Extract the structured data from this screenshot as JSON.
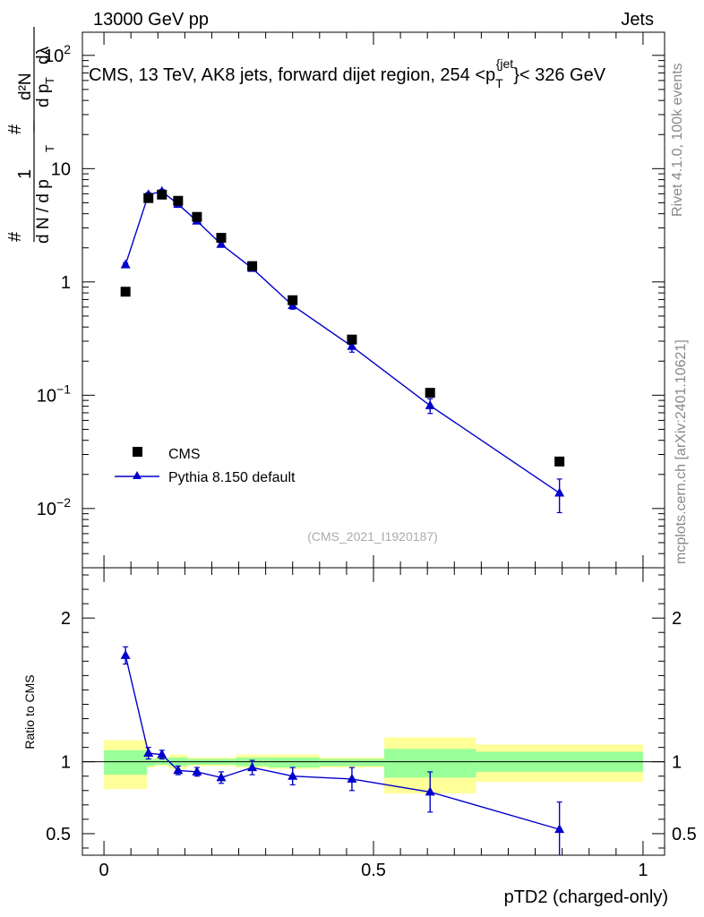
{
  "header": {
    "left": "13000 GeV pp",
    "right": "Jets"
  },
  "side_labels": {
    "rivet": "Rivet 4.1.0,  100k events",
    "source": "mcplots.cern.ch [arXiv:2401.10621]"
  },
  "chart_data": [
    {
      "type": "scatter",
      "panel": "main",
      "title": "CMS, 13 TeV, AK8 jets, forward dijet region, 254 <p_T^{jet}< 326 GeV",
      "title_parts": {
        "prefix": "CMS, 13 TeV, AK8 jets, forward dijet region, 254 <p",
        "sub": "T",
        "sup": "{jet",
        "suffix": "}< 326 GeV"
      },
      "ylabel": "1/(dN/dp_T) d²N/(dp_T dλ)",
      "ylabel_parts": {
        "lead": "1",
        "den": "d N / d p",
        "num_sym": "d²N",
        "den2": "d p",
        "sub_T": "T",
        "lambda": "dλ",
        "hash": "#"
      },
      "yscale": "log",
      "ylim": [
        0.003,
        160
      ],
      "y_ticks": [
        {
          "value": 0.01,
          "base": "10",
          "exp": "−2"
        },
        {
          "value": 0.1,
          "base": "10",
          "exp": "−1"
        },
        {
          "value": 1,
          "label": "1"
        },
        {
          "value": 10,
          "label": "10"
        },
        {
          "value": 100,
          "base": "10",
          "exp": "2"
        }
      ],
      "xlim": [
        -0.04,
        1.04
      ],
      "watermark": "(CMS_2021_I1920187)",
      "legend_position": "bottom-left",
      "series": [
        {
          "name": "CMS",
          "marker": "square",
          "color": "#000000",
          "x": [
            0.04,
            0.0825,
            0.1075,
            0.1375,
            0.1725,
            0.2175,
            0.275,
            0.35,
            0.46,
            0.605,
            0.845
          ],
          "y": [
            0.82,
            5.5,
            5.9,
            5.2,
            3.75,
            2.45,
            1.38,
            0.69,
            0.31,
            0.105,
            0.026
          ]
        },
        {
          "name": "Pythia 8.150 default",
          "marker": "triangle",
          "color": "#0000cc",
          "x": [
            0.04,
            0.0825,
            0.1075,
            0.1375,
            0.1725,
            0.2175,
            0.275,
            0.35,
            0.46,
            0.605,
            0.845
          ],
          "y": [
            1.42,
            5.9,
            6.3,
            4.85,
            3.45,
            2.15,
            1.32,
            0.62,
            0.27,
            0.081,
            0.0137
          ],
          "yerr_low": [
            0.05,
            0.25,
            0.25,
            0.2,
            0.15,
            0.12,
            0.07,
            0.045,
            0.03,
            0.012,
            0.0045
          ],
          "yerr_high": [
            0.05,
            0.25,
            0.25,
            0.2,
            0.15,
            0.12,
            0.07,
            0.045,
            0.03,
            0.012,
            0.0045
          ]
        }
      ]
    },
    {
      "type": "line",
      "panel": "ratio",
      "ylabel": "Ratio to CMS",
      "xlabel": "pTD2 (charged-only)",
      "ylim": [
        0.35,
        2.35
      ],
      "y_ticks": [
        0.5,
        1,
        2
      ],
      "x_ticks": [
        0,
        0.5,
        1
      ],
      "xlim": [
        -0.04,
        1.04
      ],
      "reference": 1,
      "bands": [
        {
          "x0": 0.0,
          "x1": 0.08,
          "green_lo": 0.91,
          "green_hi": 1.08,
          "yellow_lo": 0.81,
          "yellow_hi": 1.15
        },
        {
          "x0": 0.08,
          "x1": 0.095,
          "green_lo": 0.97,
          "green_hi": 1.02,
          "yellow_lo": 0.96,
          "yellow_hi": 1.03
        },
        {
          "x0": 0.095,
          "x1": 0.12,
          "green_lo": 0.98,
          "green_hi": 1.02,
          "yellow_lo": 0.97,
          "yellow_hi": 1.03
        },
        {
          "x0": 0.12,
          "x1": 0.155,
          "green_lo": 0.97,
          "green_hi": 1.03,
          "yellow_lo": 0.95,
          "yellow_hi": 1.05
        },
        {
          "x0": 0.155,
          "x1": 0.19,
          "green_lo": 0.98,
          "green_hi": 1.02,
          "yellow_lo": 0.97,
          "yellow_hi": 1.03
        },
        {
          "x0": 0.19,
          "x1": 0.245,
          "green_lo": 0.98,
          "green_hi": 1.02,
          "yellow_lo": 0.97,
          "yellow_hi": 1.03
        },
        {
          "x0": 0.245,
          "x1": 0.305,
          "green_lo": 0.97,
          "green_hi": 1.03,
          "yellow_lo": 0.96,
          "yellow_hi": 1.05
        },
        {
          "x0": 0.305,
          "x1": 0.4,
          "green_lo": 0.96,
          "green_hi": 1.03,
          "yellow_lo": 0.95,
          "yellow_hi": 1.05
        },
        {
          "x0": 0.4,
          "x1": 0.52,
          "green_lo": 0.97,
          "green_hi": 1.02,
          "yellow_lo": 0.96,
          "yellow_hi": 1.03
        },
        {
          "x0": 0.52,
          "x1": 0.69,
          "green_lo": 0.89,
          "green_hi": 1.09,
          "yellow_lo": 0.78,
          "yellow_hi": 1.17
        },
        {
          "x0": 0.69,
          "x1": 1.0,
          "green_lo": 0.93,
          "green_hi": 1.07,
          "yellow_lo": 0.86,
          "yellow_hi": 1.12
        }
      ],
      "series": [
        {
          "name": "Pythia 8.150 default / CMS",
          "marker": "triangle",
          "color": "#0000cc",
          "x": [
            0.04,
            0.0825,
            0.1075,
            0.1375,
            0.1725,
            0.2175,
            0.275,
            0.35,
            0.46,
            0.605,
            0.845
          ],
          "y": [
            1.74,
            1.06,
            1.05,
            0.94,
            0.93,
            0.89,
            0.96,
            0.9,
            0.88,
            0.79,
            0.53
          ],
          "yerr_low": [
            0.06,
            0.04,
            0.03,
            0.03,
            0.03,
            0.04,
            0.05,
            0.06,
            0.08,
            0.14,
            0.19
          ],
          "yerr_high": [
            0.06,
            0.04,
            0.03,
            0.03,
            0.03,
            0.04,
            0.05,
            0.06,
            0.08,
            0.14,
            0.19
          ]
        }
      ]
    }
  ]
}
